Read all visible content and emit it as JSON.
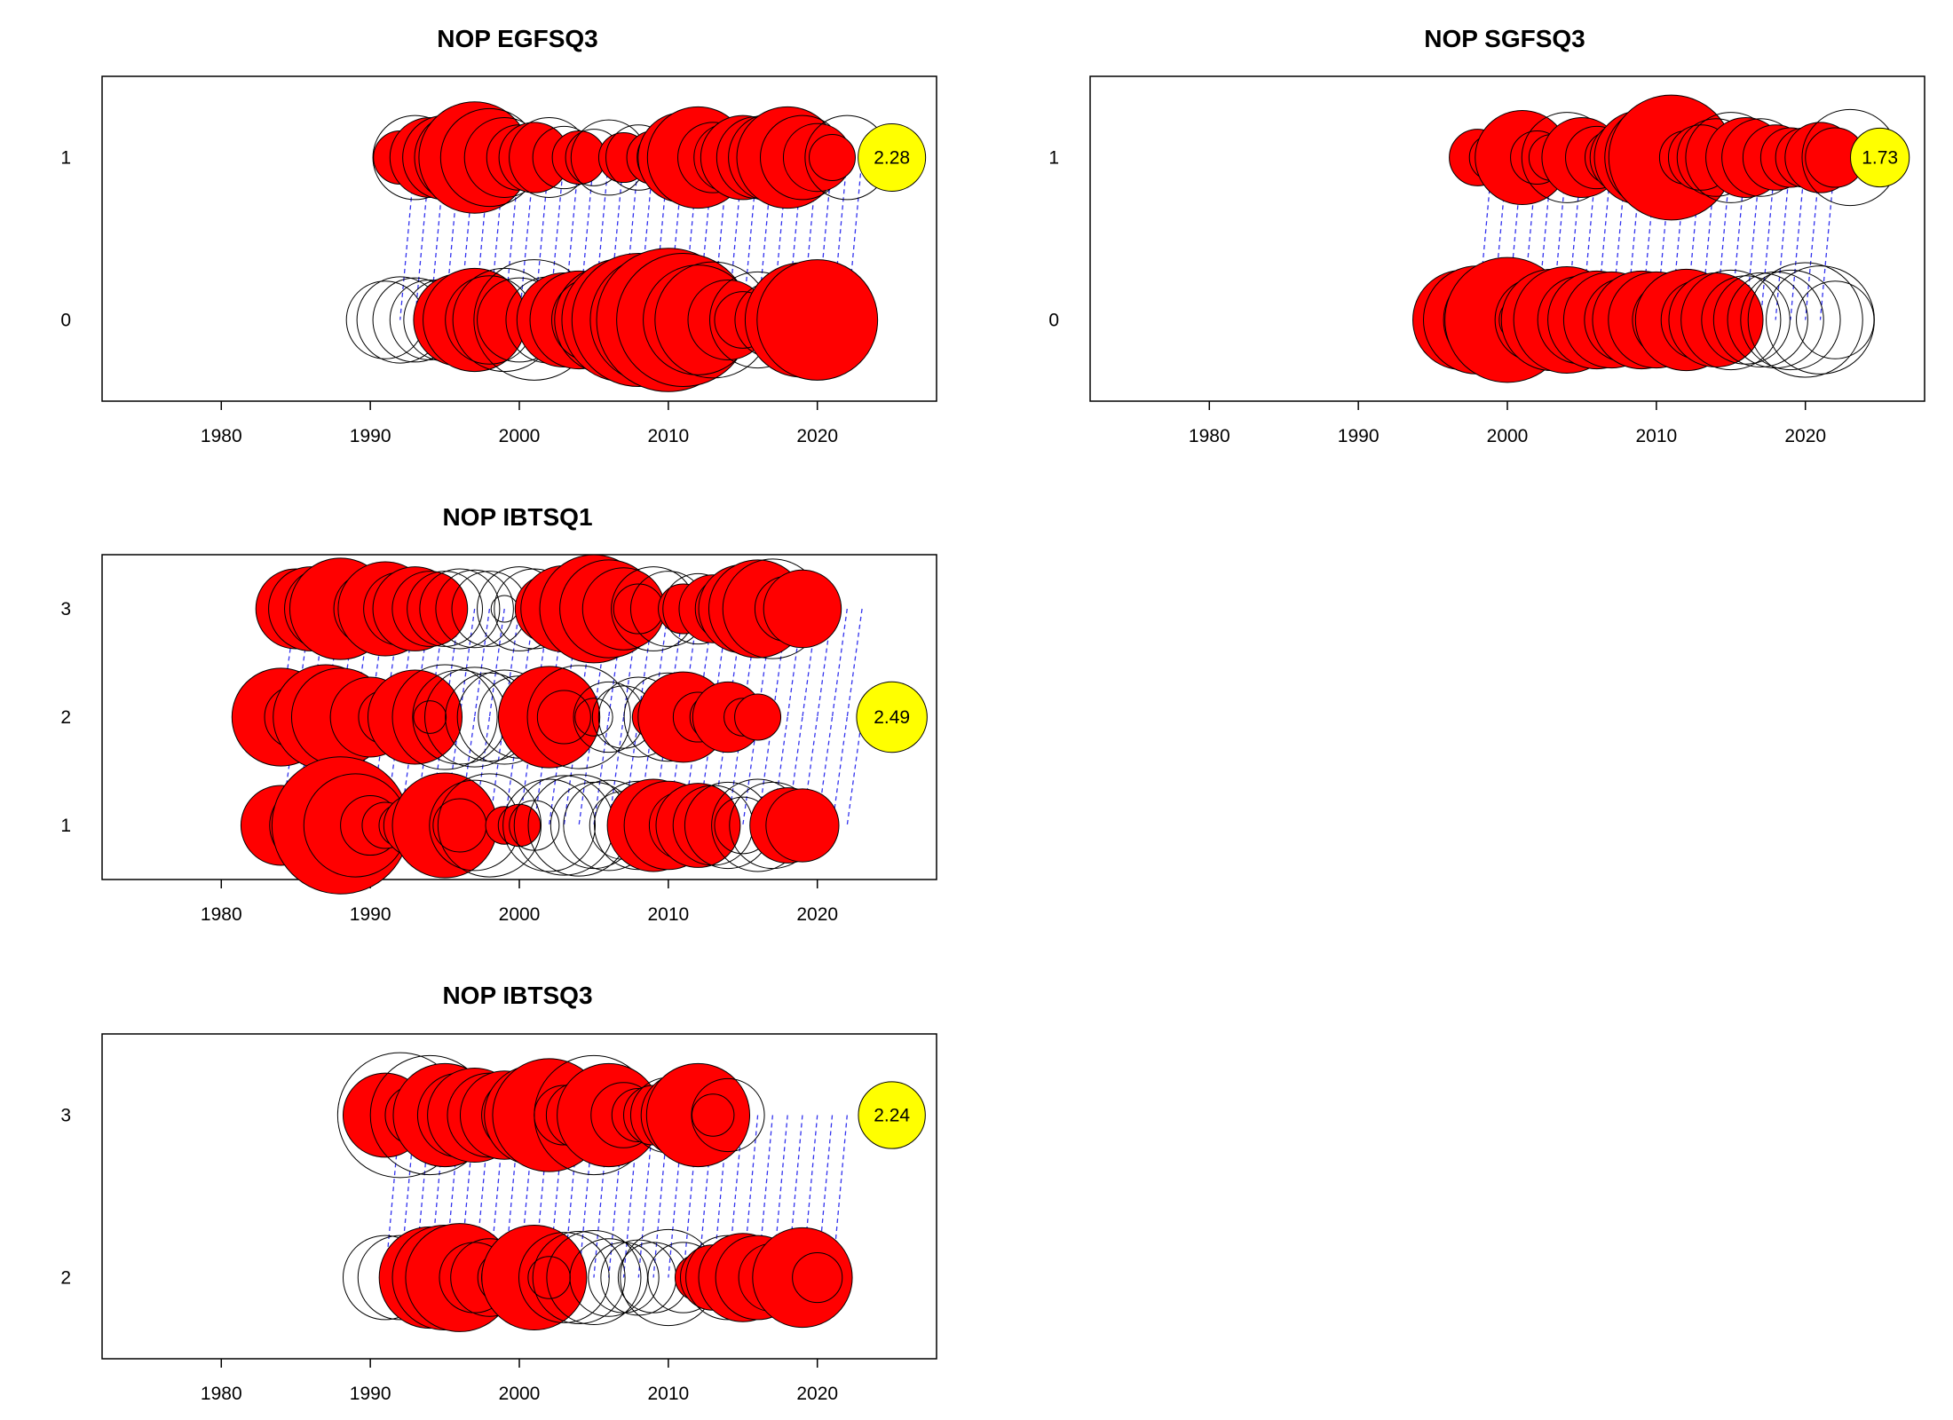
{
  "chart_data": [
    {
      "type": "scatter",
      "title": "NOP EGFSQ3",
      "xlim": [
        1972,
        2028
      ],
      "x_ticks": [
        1980,
        1990,
        2000,
        2010,
        2020
      ],
      "y_levels": [
        0,
        1
      ],
      "y_tick_labels": [
        "0",
        "1"
      ],
      "first_year": 1992,
      "last_year": 2023,
      "connector_lag": 1,
      "legend_value": "2.28",
      "legend_row": 1,
      "legend_x": 2025,
      "rows": [
        {
          "y": 1,
          "x_start": 1992,
          "values": [
            0.08,
            -0.2,
            0.18,
            0.2,
            -0.23,
            0.35,
            -0.27,
            -0.18,
            0.12,
            0.14,
            -0.18,
            -0.11,
            0.08,
            -0.09,
            -0.16,
            0.07,
            -0.12,
            0.08,
            0.11,
            0.23,
            0.29,
            -0.14,
            0.13,
            0.2,
            -0.19,
            -0.22,
            0.29,
            -0.2,
            0.13,
            0.06,
            -0.2
          ]
        },
        {
          "y": 0,
          "x_start": 1991,
          "values": [
            -0.17,
            -0.21,
            -0.2,
            -0.18,
            -0.19,
            0.24,
            0.3,
            -0.22,
            -0.3,
            -0.2,
            -0.41,
            -0.21,
            0.25,
            0.27,
            -0.2,
            -0.33,
            0.43,
            0.5,
            -0.45,
            0.58,
            0.5,
            0.34,
            -0.38,
            0.18,
            0.09,
            -0.26,
            -0.16,
            -0.13,
            0.37,
            0.41
          ]
        }
      ]
    },
    {
      "type": "scatter",
      "title": "NOP SGFSQ3",
      "xlim": [
        1972,
        2028
      ],
      "x_ticks": [
        1980,
        1990,
        2000,
        2010,
        2020
      ],
      "y_levels": [
        0,
        1
      ],
      "y_tick_labels": [
        "0",
        "1"
      ],
      "first_year": 1998,
      "last_year": 2022,
      "connector_lag": 1,
      "legend_value": "1.73",
      "legend_row": 1,
      "legend_x": 2025,
      "rows": [
        {
          "y": 1,
          "x_start": 1998,
          "values": [
            0.09,
            0.06,
            -0.09,
            0.25,
            -0.08,
            0.06,
            -0.23,
            0.18,
            0.11,
            -0.08,
            0.15,
            0.25,
            0.3,
            0.44,
            0.08,
            0.12,
            -0.17,
            -0.23,
            0.18,
            -0.17,
            0.12,
            0.1,
            -0.1,
            0.14,
            0.1,
            -0.26
          ]
        },
        {
          "y": 0,
          "x_start": 1997,
          "values": [
            0.28,
            0.33,
            0.27,
            0.44,
            0.06,
            -0.2,
            0.29,
            0.32,
            -0.22,
            0.27,
            0.26,
            -0.2,
            0.27,
            0.26,
            -0.17,
            0.29,
            0.18,
            0.25,
            -0.28,
            -0.22,
            -0.25,
            -0.26,
            -0.28,
            -0.37,
            -0.33,
            -0.17
          ]
        }
      ]
    },
    {
      "type": "scatter",
      "title": "NOP IBTSQ1",
      "xlim": [
        1972,
        2028
      ],
      "x_ticks": [
        1980,
        1990,
        2000,
        2010,
        2020
      ],
      "y_levels": [
        1,
        2,
        3
      ],
      "y_tick_labels": [
        "1",
        "2",
        "3"
      ],
      "first_year": 1984,
      "last_year": 2023,
      "connector_lag": 1,
      "legend_value": "2.49",
      "legend_row": 2,
      "legend_x": 2025,
      "rows": [
        {
          "y": 3,
          "x_start": 1984,
          "values": [
            0.06,
            0.18,
            0.2,
            0.19,
            0.29,
            0.05,
            0.15,
            0.25,
            0.15,
            0.2,
            0.16,
            -0.16,
            -0.18,
            -0.17,
            -0.16,
            -0.02,
            -0.2,
            -0.18,
            0.13,
            0.21,
            0.1,
            0.33,
            0.27,
            0.19,
            0.07,
            -0.2,
            -0.16,
            0.07,
            -0.14,
            0.13,
            -0.12,
            0.22,
            0.27,
            -0.28,
            0.12,
            0.17
          ]
        },
        {
          "y": 2,
          "x_start": 1984,
          "values": [
            0.27,
            0.11,
            0.1,
            0.31,
            0.27,
            0.07,
            0.18,
            0.08,
            -0.03,
            0.25,
            -0.03,
            -0.31,
            -0.25,
            -0.28,
            -0.22,
            -0.25,
            -0.19,
            -0.08,
            0.29,
            0.08,
            -0.3,
            -0.04,
            -0.14,
            -0.11,
            -0.18,
            0.05,
            -0.22,
            0.23,
            0.07,
            0.06,
            0.14,
            0.04,
            0.06
          ]
        },
        {
          "y": 1,
          "x_start": 1984,
          "values": [
            0.18,
            0.04,
            0.19,
            0.22,
            0.53,
            0.3,
            -0.1,
            0.06,
            -0.05,
            0.11,
            0.04,
            0.31,
            0.08,
            -0.23,
            -0.3,
            0.04,
            0.05,
            -0.07,
            -0.24,
            -0.28,
            -0.29,
            -0.21,
            -0.23,
            -0.13,
            -0.22,
            0.24,
            0.22,
            0.13,
            0.2,
            -0.18,
            -0.21,
            -0.09,
            -0.24,
            -0.21,
            0.16,
            0.15
          ]
        }
      ]
    },
    {
      "type": "scatter",
      "title": "NOP IBTSQ3",
      "xlim": [
        1972,
        2028
      ],
      "x_ticks": [
        1980,
        1990,
        2000,
        2010,
        2020
      ],
      "y_levels": [
        2,
        3
      ],
      "y_tick_labels": [
        "2",
        "3"
      ],
      "first_year": 1991,
      "last_year": 2022,
      "connector_lag": 1,
      "legend_value": "2.24",
      "legend_row": 3,
      "legend_x": 2025,
      "rows": [
        {
          "y": 3,
          "x_start": 1991,
          "values": [
            0.2,
            -0.44,
            0.1,
            -0.4,
            0.3,
            0.2,
            0.25,
            0.2,
            0.22,
            0.16,
            0.28,
            0.36,
            0.1,
            0.12,
            -0.4,
            0.3,
            0.12,
            0.08,
            0.1,
            -0.16,
            0.2,
            0.3,
            0.05,
            -0.15
          ]
        },
        {
          "y": 2,
          "x_start": 1991,
          "values": [
            -0.2,
            -0.2,
            0.12,
            0.29,
            0.31,
            0.33,
            0.14,
            -0.17,
            0.08,
            -0.16,
            0.31,
            0.05,
            -0.23,
            -0.24,
            -0.25,
            -0.17,
            -0.14,
            -0.16,
            -0.14,
            -0.26,
            -0.14,
            0.06,
            0.12,
            -0.2,
            0.22,
            0.2,
            0.13,
            0.07,
            0.28,
            0.07
          ]
        }
      ]
    }
  ]
}
